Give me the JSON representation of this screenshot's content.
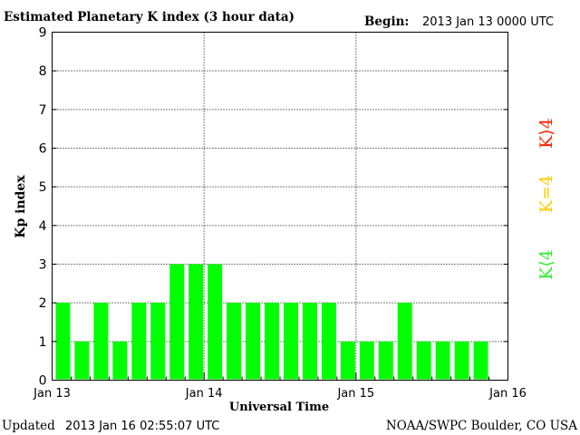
{
  "header": {
    "title": "Estimated Planetary K index (3 hour data)",
    "begin_label": "Begin:",
    "begin_value": "2013 Jan 13 0000 UTC"
  },
  "footer": {
    "updated_label": "Updated",
    "updated_value": "2013 Jan 16 02:55:07 UTC",
    "source": "NOAA/SWPC Boulder, CO USA"
  },
  "legend": [
    {
      "label": "K<4",
      "color": "#33ee33"
    },
    {
      "label": "K=4",
      "color": "#ffcc00"
    },
    {
      "label": "K>4",
      "color": "#ff2200"
    }
  ],
  "chart_data": {
    "type": "bar",
    "title": "Estimated Planetary K index (3 hour data)",
    "xlabel": "Universal Time",
    "ylabel": "Kp index",
    "ylim": [
      0,
      9
    ],
    "yticks": [
      "0",
      "1",
      "2",
      "3",
      "4",
      "5",
      "6",
      "7",
      "8",
      "9"
    ],
    "xticks": [
      "Jan 13",
      "Jan 14",
      "Jan 15",
      "Jan 16"
    ],
    "grid": true,
    "bar_color": "#00ff00",
    "categories": [
      "2013-01-13 00",
      "2013-01-13 03",
      "2013-01-13 06",
      "2013-01-13 09",
      "2013-01-13 12",
      "2013-01-13 15",
      "2013-01-13 18",
      "2013-01-13 21",
      "2013-01-14 00",
      "2013-01-14 03",
      "2013-01-14 06",
      "2013-01-14 09",
      "2013-01-14 12",
      "2013-01-14 15",
      "2013-01-14 18",
      "2013-01-14 21",
      "2013-01-15 00",
      "2013-01-15 03",
      "2013-01-15 06",
      "2013-01-15 09",
      "2013-01-15 12",
      "2013-01-15 15",
      "2013-01-15 18",
      "2013-01-15 21"
    ],
    "values": [
      2,
      1,
      2,
      1,
      2,
      2,
      3,
      3,
      3,
      2,
      2,
      2,
      2,
      2,
      2,
      1,
      1,
      1,
      2,
      1,
      1,
      1,
      1,
      0
    ]
  }
}
